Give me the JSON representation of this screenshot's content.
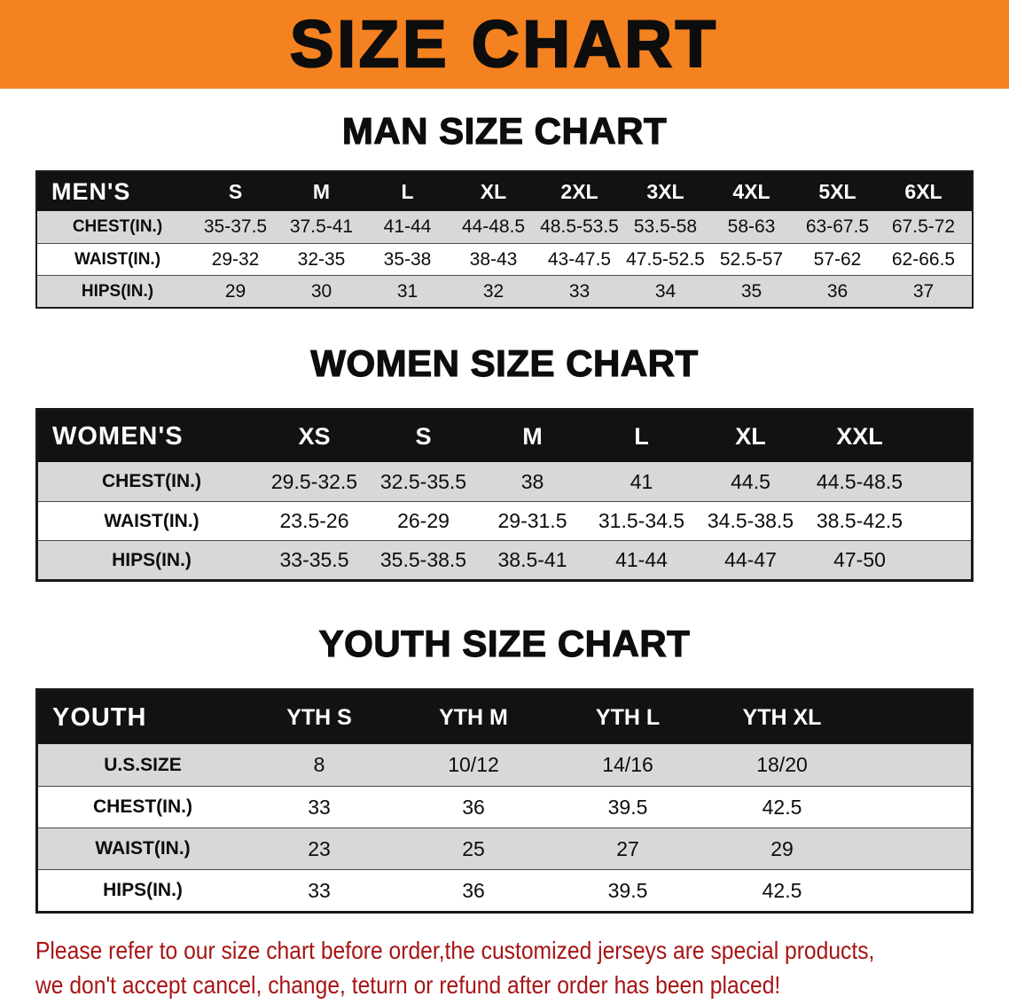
{
  "banner": {
    "title": "SIZE CHART"
  },
  "colors": {
    "banner_bg": "#F58220",
    "header_bg": "#121212",
    "stripe": "#D8D8D8",
    "border": "#1A1A1A",
    "disclaimer_red": "#A81414"
  },
  "men": {
    "heading": "MAN SIZE CHART",
    "header": {
      "label": "MEN'S",
      "sizes": [
        "S",
        "M",
        "L",
        "XL",
        "2XL",
        "3XL",
        "4XL",
        "5XL",
        "6XL"
      ]
    },
    "rows": [
      {
        "label": "CHEST(IN.)",
        "values": [
          "35-37.5",
          "37.5-41",
          "41-44",
          "44-48.5",
          "48.5-53.5",
          "53.5-58",
          "58-63",
          "63-67.5",
          "67.5-72"
        ]
      },
      {
        "label": "WAIST(IN.)",
        "values": [
          "29-32",
          "32-35",
          "35-38",
          "38-43",
          "43-47.5",
          "47.5-52.5",
          "52.5-57",
          "57-62",
          "62-66.5"
        ]
      },
      {
        "label": "HIPS(IN.)",
        "values": [
          "29",
          "30",
          "31",
          "32",
          "33",
          "34",
          "35",
          "36",
          "37"
        ]
      }
    ]
  },
  "women": {
    "heading": "WOMEN SIZE CHART",
    "header": {
      "label": "WOMEN'S",
      "sizes": [
        "XS",
        "S",
        "M",
        "L",
        "XL",
        "XXL"
      ]
    },
    "rows": [
      {
        "label": "CHEST(IN.)",
        "values": [
          "29.5-32.5",
          "32.5-35.5",
          "38",
          "41",
          "44.5",
          "44.5-48.5"
        ]
      },
      {
        "label": "WAIST(IN.)",
        "values": [
          "23.5-26",
          "26-29",
          "29-31.5",
          "31.5-34.5",
          "34.5-38.5",
          "38.5-42.5"
        ]
      },
      {
        "label": "HIPS(IN.)",
        "values": [
          "33-35.5",
          "35.5-38.5",
          "38.5-41",
          "41-44",
          "44-47",
          "47-50"
        ]
      }
    ]
  },
  "youth": {
    "heading": "YOUTH SIZE CHART",
    "header": {
      "label": "YOUTH",
      "sizes": [
        "YTH S",
        "YTH M",
        "YTH L",
        "YTH XL"
      ]
    },
    "rows": [
      {
        "label": "U.S.SIZE",
        "values": [
          "8",
          "10/12",
          "14/16",
          "18/20"
        ]
      },
      {
        "label": "CHEST(IN.)",
        "values": [
          "33",
          "36",
          "39.5",
          "42.5"
        ]
      },
      {
        "label": "WAIST(IN.)",
        "values": [
          "23",
          "25",
          "27",
          "29"
        ]
      },
      {
        "label": "HIPS(IN.)",
        "values": [
          "33",
          "36",
          "39.5",
          "42.5"
        ]
      }
    ]
  },
  "disclaimer": {
    "line1": "Please refer to our size chart before order,the customized jerseys are special products,",
    "line2": "we don't accept cancel, change, teturn or refund after order has been placed!"
  }
}
